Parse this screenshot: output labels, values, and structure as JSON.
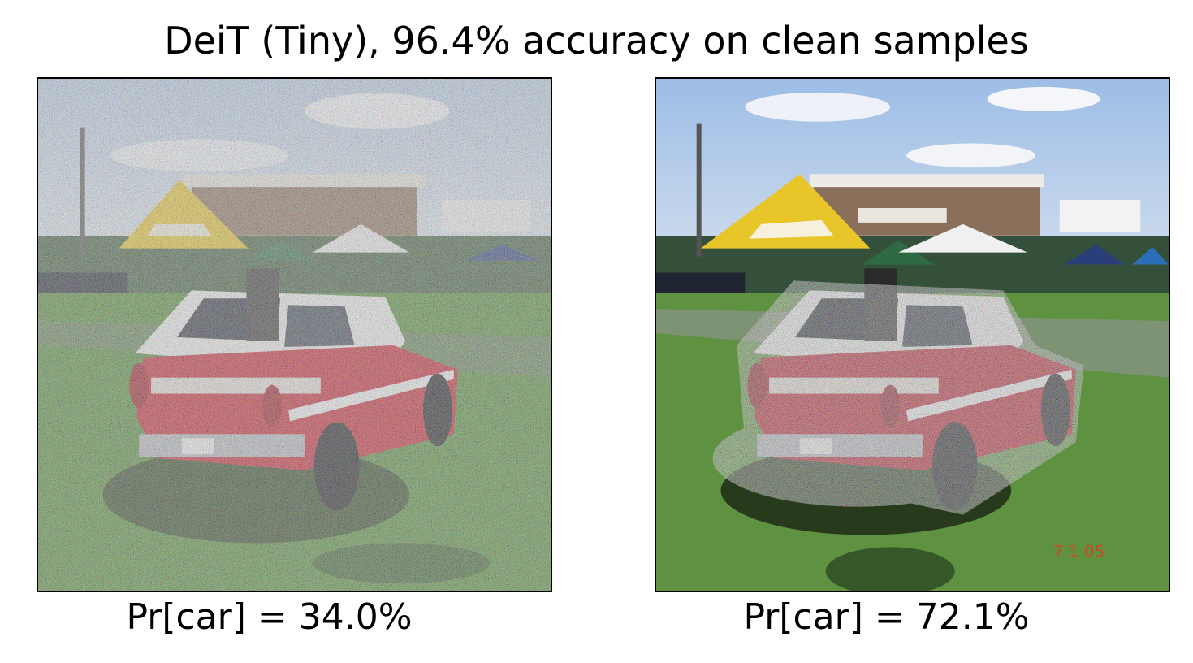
{
  "figure": {
    "title": "DeiT (Tiny), 96.4% accuracy on clean samples",
    "panels": [
      {
        "caption": "Pr[car] = 34.0%",
        "noise": "whole-image"
      },
      {
        "caption": "Pr[car] = 72.1%",
        "noise": "car-region",
        "date_stamp": "7 1 05"
      }
    ]
  },
  "colors": {
    "sky": "#a9c6e8",
    "grass": "#4f8a34",
    "car_body": "#c8202f",
    "car_roof": "#f2f2f2",
    "tent_yellow": "#e8c62a",
    "tent_green": "#2e6b45",
    "tent_blue": "#2a3f7a"
  }
}
